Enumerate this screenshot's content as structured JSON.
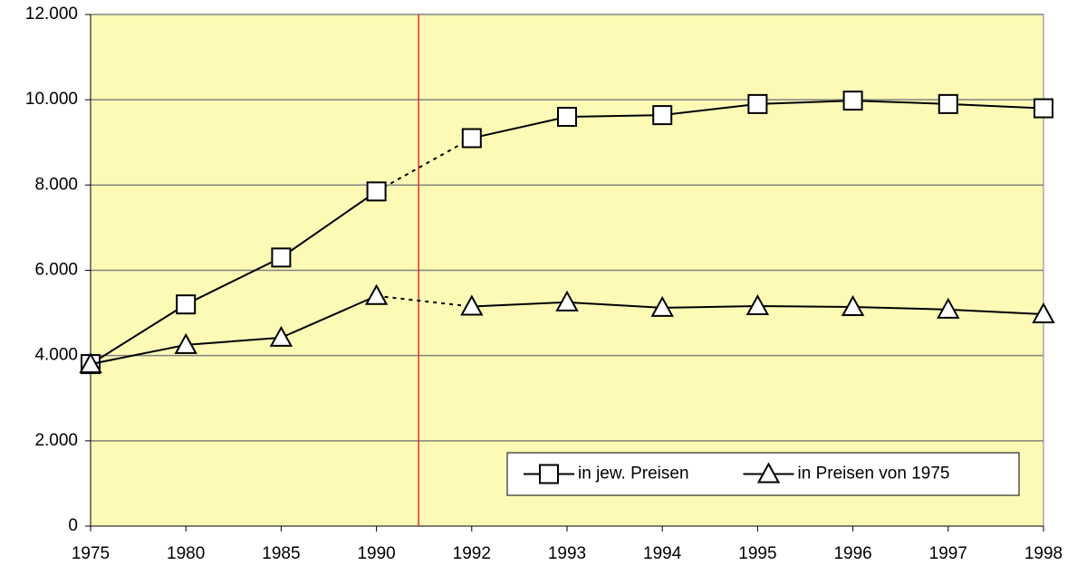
{
  "chart_data": {
    "type": "line",
    "categories": [
      "1975",
      "1980",
      "1985",
      "1990",
      "1992",
      "1993",
      "1994",
      "1995",
      "1996",
      "1997",
      "1998"
    ],
    "series": [
      {
        "name": "in jew. Preisen",
        "color": "#000000",
        "marker": "square",
        "values": [
          3800,
          5200,
          6300,
          7850,
          9100,
          9600,
          9640,
          9900,
          9980,
          9900,
          9800
        ]
      },
      {
        "name": "in Preisen von 1975",
        "color": "#000000",
        "marker": "triangle",
        "values": [
          3800,
          4250,
          4420,
          5400,
          5150,
          5250,
          5120,
          5160,
          5140,
          5080,
          4970
        ]
      }
    ],
    "ylim": [
      0,
      12000
    ],
    "yticks": [
      0,
      {
        "value": 2000,
        "label": "2.000"
      },
      {
        "value": 4000,
        "label": "4.000"
      },
      {
        "value": 6000,
        "label": "6.000"
      },
      {
        "value": 8000,
        "label": "8.000"
      },
      {
        "value": 10000,
        "label": "10.000"
      },
      {
        "value": 12000,
        "label": "12.000"
      }
    ],
    "grid": true,
    "legend": "lower right",
    "background": "#fdfab6"
  }
}
